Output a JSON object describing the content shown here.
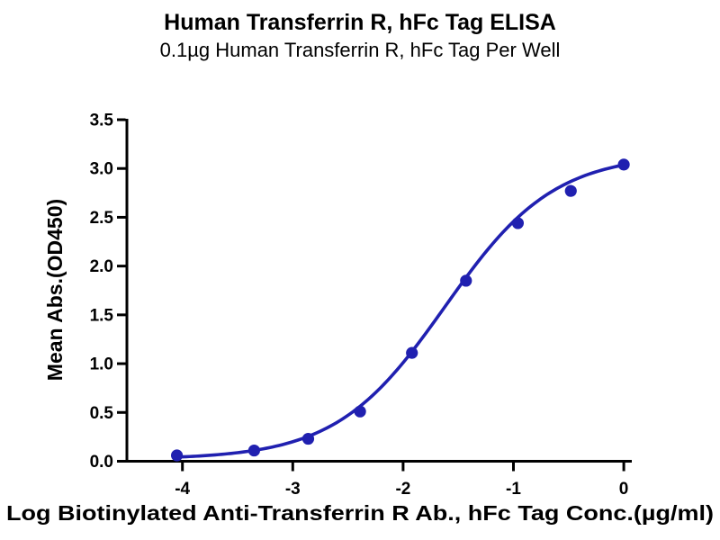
{
  "header": {
    "title": "Human Transferrin R, hFc Tag ELISA",
    "subtitle": "0.1µg Human Transferrin R, hFc Tag Per Well"
  },
  "chart": {
    "xlabel": "Log Biotinylated Anti-Transferrin R Ab., hFc Tag Conc.(µg/ml)",
    "ylabel": "Mean Abs.(OD450)"
  },
  "chart_data": {
    "type": "scatter",
    "title": "Human Transferrin R, hFc Tag ELISA",
    "subtitle": "0.1µg Human Transferrin R, hFc Tag Per Well",
    "xlabel": "Log Biotinylated Anti-Transferrin R Ab., hFc Tag Conc.(µg/ml)",
    "ylabel": "Mean Abs.(OD450)",
    "x": [
      -4.05,
      -3.35,
      -2.86,
      -2.39,
      -1.92,
      -1.43,
      -0.96,
      -0.48,
      0.0
    ],
    "y": [
      0.06,
      0.11,
      0.23,
      0.51,
      1.11,
      1.85,
      2.44,
      2.77,
      3.04
    ],
    "curve_fit_4pl": {
      "bottom": 0.02,
      "top": 3.15,
      "log_ec50": -1.62,
      "hill": 0.88
    },
    "x_ticks": {
      "values": [
        -4,
        -3,
        -2,
        -1,
        0
      ],
      "labels": [
        "-4",
        "-3",
        "-2",
        "-1",
        "0"
      ]
    },
    "y_ticks": {
      "values": [
        0.0,
        0.5,
        1.0,
        1.5,
        2.0,
        2.5,
        3.0,
        3.5
      ],
      "labels": [
        "0.0",
        "0.5",
        "1.0",
        "1.5",
        "2.0",
        "2.5",
        "3.0",
        "3.5"
      ]
    },
    "xlim": [
      -4.05,
      0.0
    ],
    "ylim": [
      0.0,
      3.5
    ],
    "grid": false,
    "legend": "none",
    "colors": {
      "curve": "#2020B0",
      "marker": "#2020B0",
      "axis": "#000000",
      "text": "#000000",
      "background": "#FFFFFF"
    }
  }
}
